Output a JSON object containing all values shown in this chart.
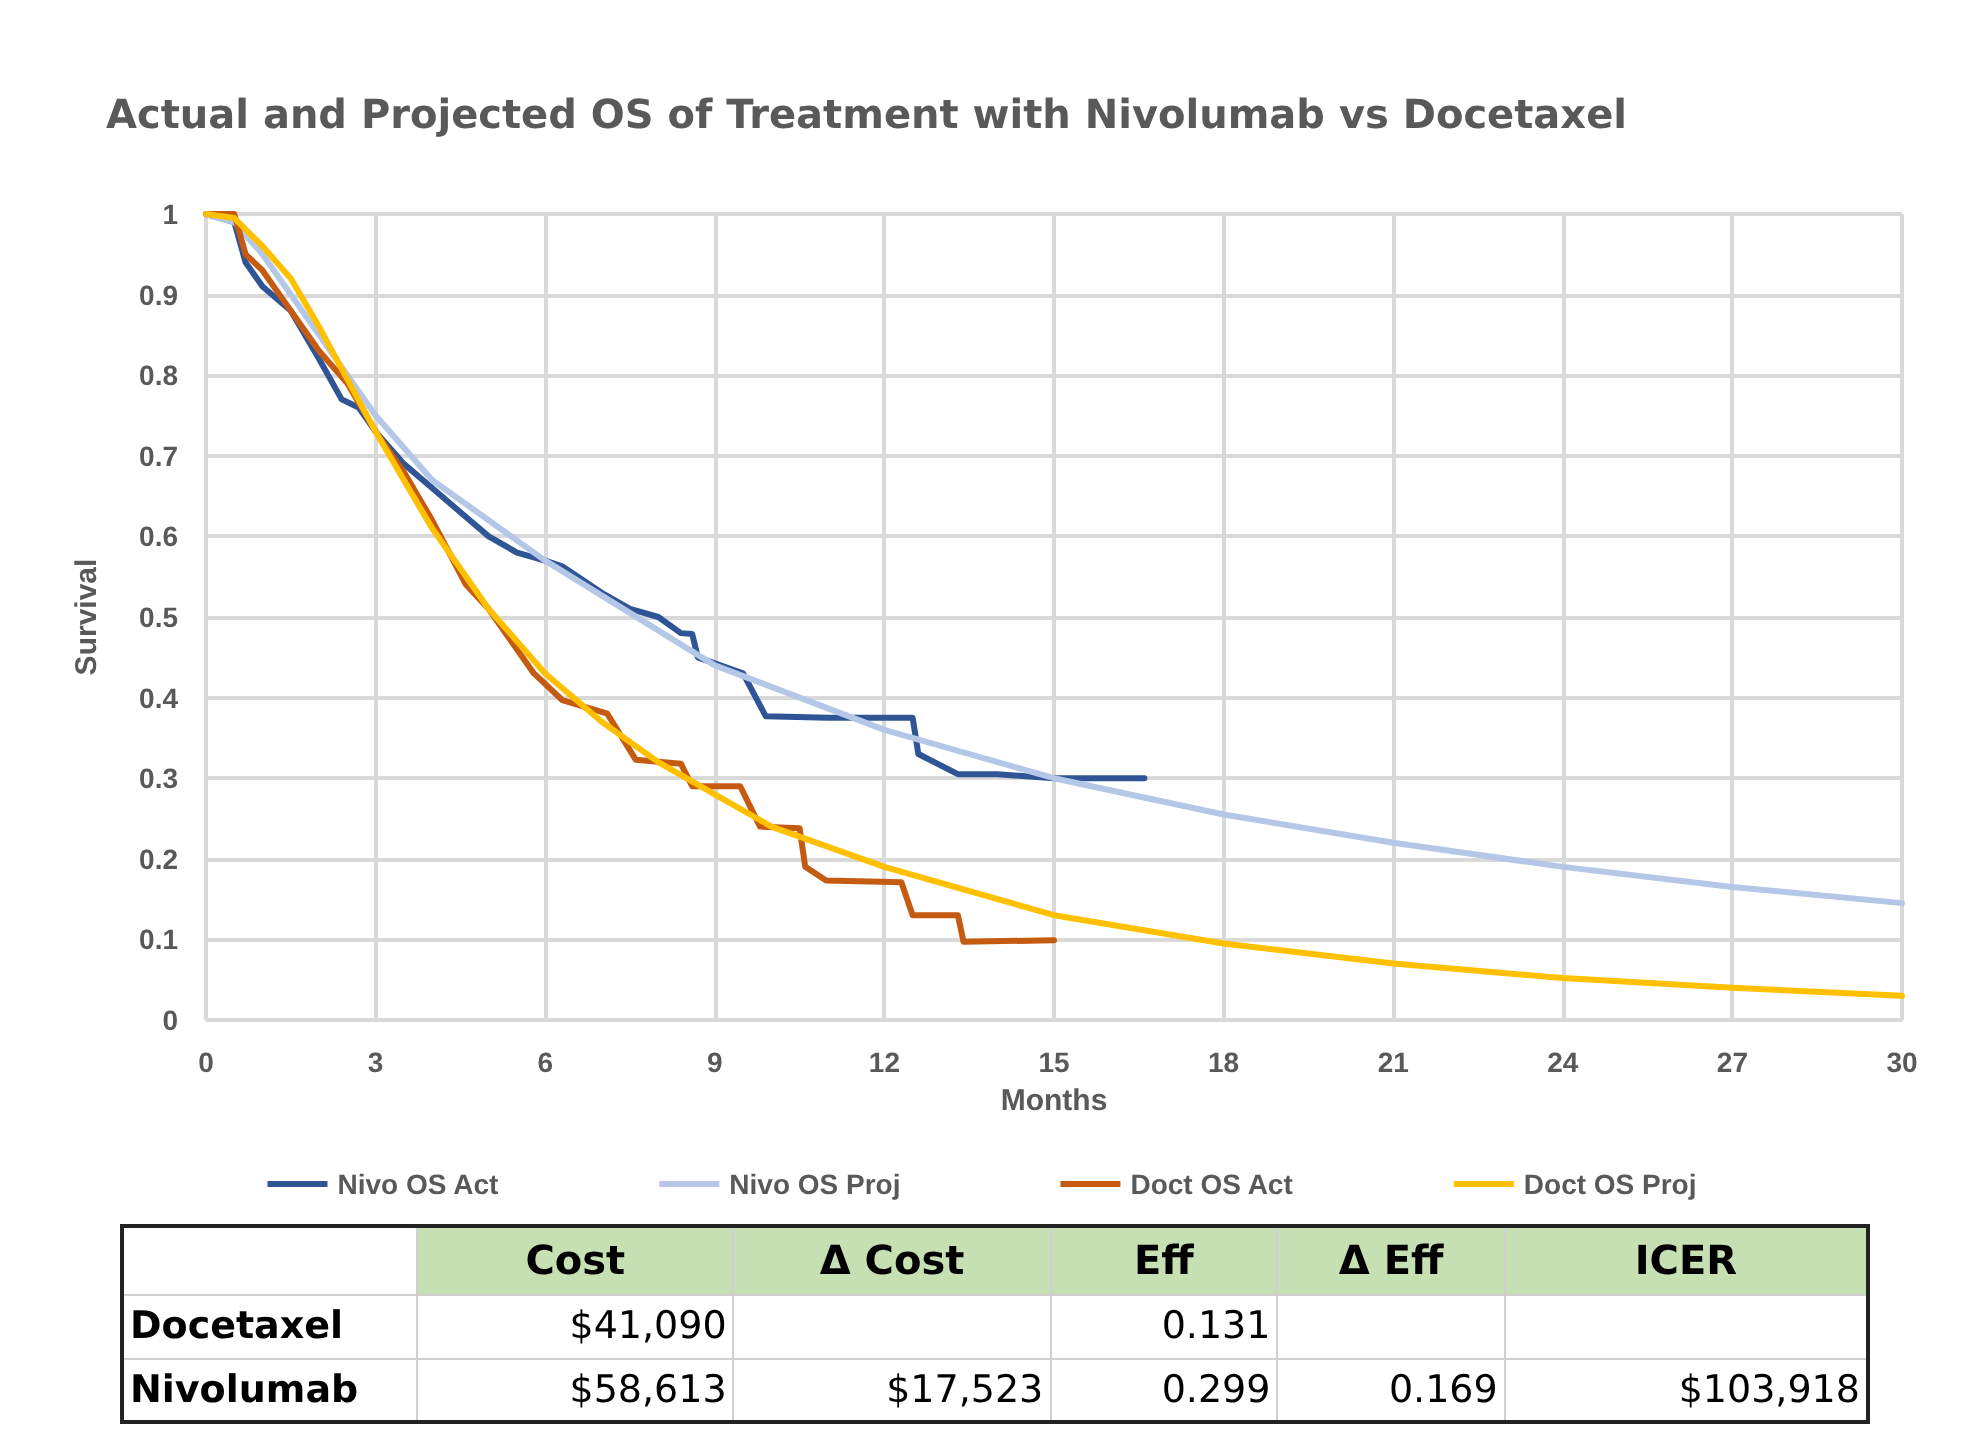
{
  "chart_data": [
    {
      "type": "line",
      "title": "Actual and Projected OS of Treatment with Nivolumab vs Docetaxel",
      "xlabel": "Months",
      "ylabel": "Survival",
      "xlim": [
        0,
        30
      ],
      "xticks": [
        0,
        3,
        6,
        9,
        12,
        15,
        18,
        21,
        24,
        27,
        30
      ],
      "ylim": [
        0,
        1
      ],
      "yticks": [
        0,
        0.1,
        0.2,
        0.3,
        0.4,
        0.5,
        0.6,
        0.7,
        0.8,
        0.9,
        1
      ],
      "grid": true,
      "legend": "bottom",
      "marker": "none",
      "line_style": "solid",
      "series": [
        {
          "name": "Nivo OS Act",
          "color": "#2f5597",
          "x": [
            0,
            0.5,
            0.7,
            1,
            1.5,
            2,
            2.4,
            2.7,
            3,
            3.5,
            4,
            4.5,
            5,
            5.5,
            6,
            6.3,
            7,
            7.5,
            8,
            8.4,
            8.6,
            8.7,
            9.5,
            9.9,
            11,
            12.5,
            12.6,
            13.3,
            14,
            15,
            16.6
          ],
          "values": [
            1,
            0.99,
            0.94,
            0.91,
            0.88,
            0.82,
            0.77,
            0.76,
            0.73,
            0.69,
            0.66,
            0.63,
            0.6,
            0.58,
            0.57,
            0.563,
            0.53,
            0.51,
            0.5,
            0.48,
            0.479,
            0.45,
            0.43,
            0.377,
            0.375,
            0.375,
            0.33,
            0.305,
            0.305,
            0.3,
            0.3
          ]
        },
        {
          "name": "Nivo OS Proj",
          "color": "#b4c7e7",
          "x": [
            0,
            0.5,
            1,
            2,
            3,
            4,
            6,
            9,
            12,
            15,
            18,
            21,
            24,
            27,
            30
          ],
          "values": [
            1,
            0.99,
            0.95,
            0.85,
            0.75,
            0.67,
            0.57,
            0.44,
            0.36,
            0.3,
            0.255,
            0.22,
            0.19,
            0.165,
            0.145
          ]
        },
        {
          "name": "Doct OS Act",
          "color": "#c55a11",
          "x": [
            0,
            0.5,
            0.7,
            1,
            1.3,
            1.5,
            2,
            2.5,
            3,
            3.5,
            4,
            4.3,
            4.6,
            5,
            5.4,
            5.8,
            6.3,
            7.1,
            7.6,
            8.4,
            8.6,
            9.45,
            9.8,
            10.5,
            10.6,
            10.97,
            12.3,
            12.5,
            13.3,
            13.4,
            15
          ],
          "values": [
            1,
            1,
            0.95,
            0.93,
            0.9,
            0.88,
            0.83,
            0.79,
            0.73,
            0.68,
            0.62,
            0.58,
            0.54,
            0.51,
            0.47,
            0.43,
            0.397,
            0.38,
            0.323,
            0.318,
            0.29,
            0.29,
            0.24,
            0.238,
            0.19,
            0.173,
            0.171,
            0.13,
            0.13,
            0.097,
            0.099
          ]
        },
        {
          "name": "Doct OS Proj",
          "color": "#ffc000",
          "x": [
            0,
            0.5,
            1,
            1.5,
            2,
            3,
            4,
            5,
            6,
            7,
            8,
            9,
            10,
            12,
            15,
            18,
            21,
            24,
            27,
            30
          ],
          "values": [
            1,
            0.995,
            0.96,
            0.92,
            0.86,
            0.73,
            0.61,
            0.51,
            0.43,
            0.37,
            0.32,
            0.28,
            0.24,
            0.19,
            0.13,
            0.095,
            0.07,
            0.052,
            0.04,
            0.03
          ]
        }
      ]
    },
    {
      "type": "other",
      "color": "#c6e0b4",
      "categories": [
        "Cost",
        "Δ Cost",
        "Eff",
        "Δ Eff",
        "ICER"
      ],
      "y_categories": [
        "Docetaxel",
        "Nivolumab"
      ],
      "cell_labels": [
        [
          "$41,090",
          null,
          "0.131",
          null,
          null
        ],
        [
          "$58,613",
          "$17,523",
          "0.299",
          "0.169",
          "$103,918"
        ]
      ]
    }
  ]
}
